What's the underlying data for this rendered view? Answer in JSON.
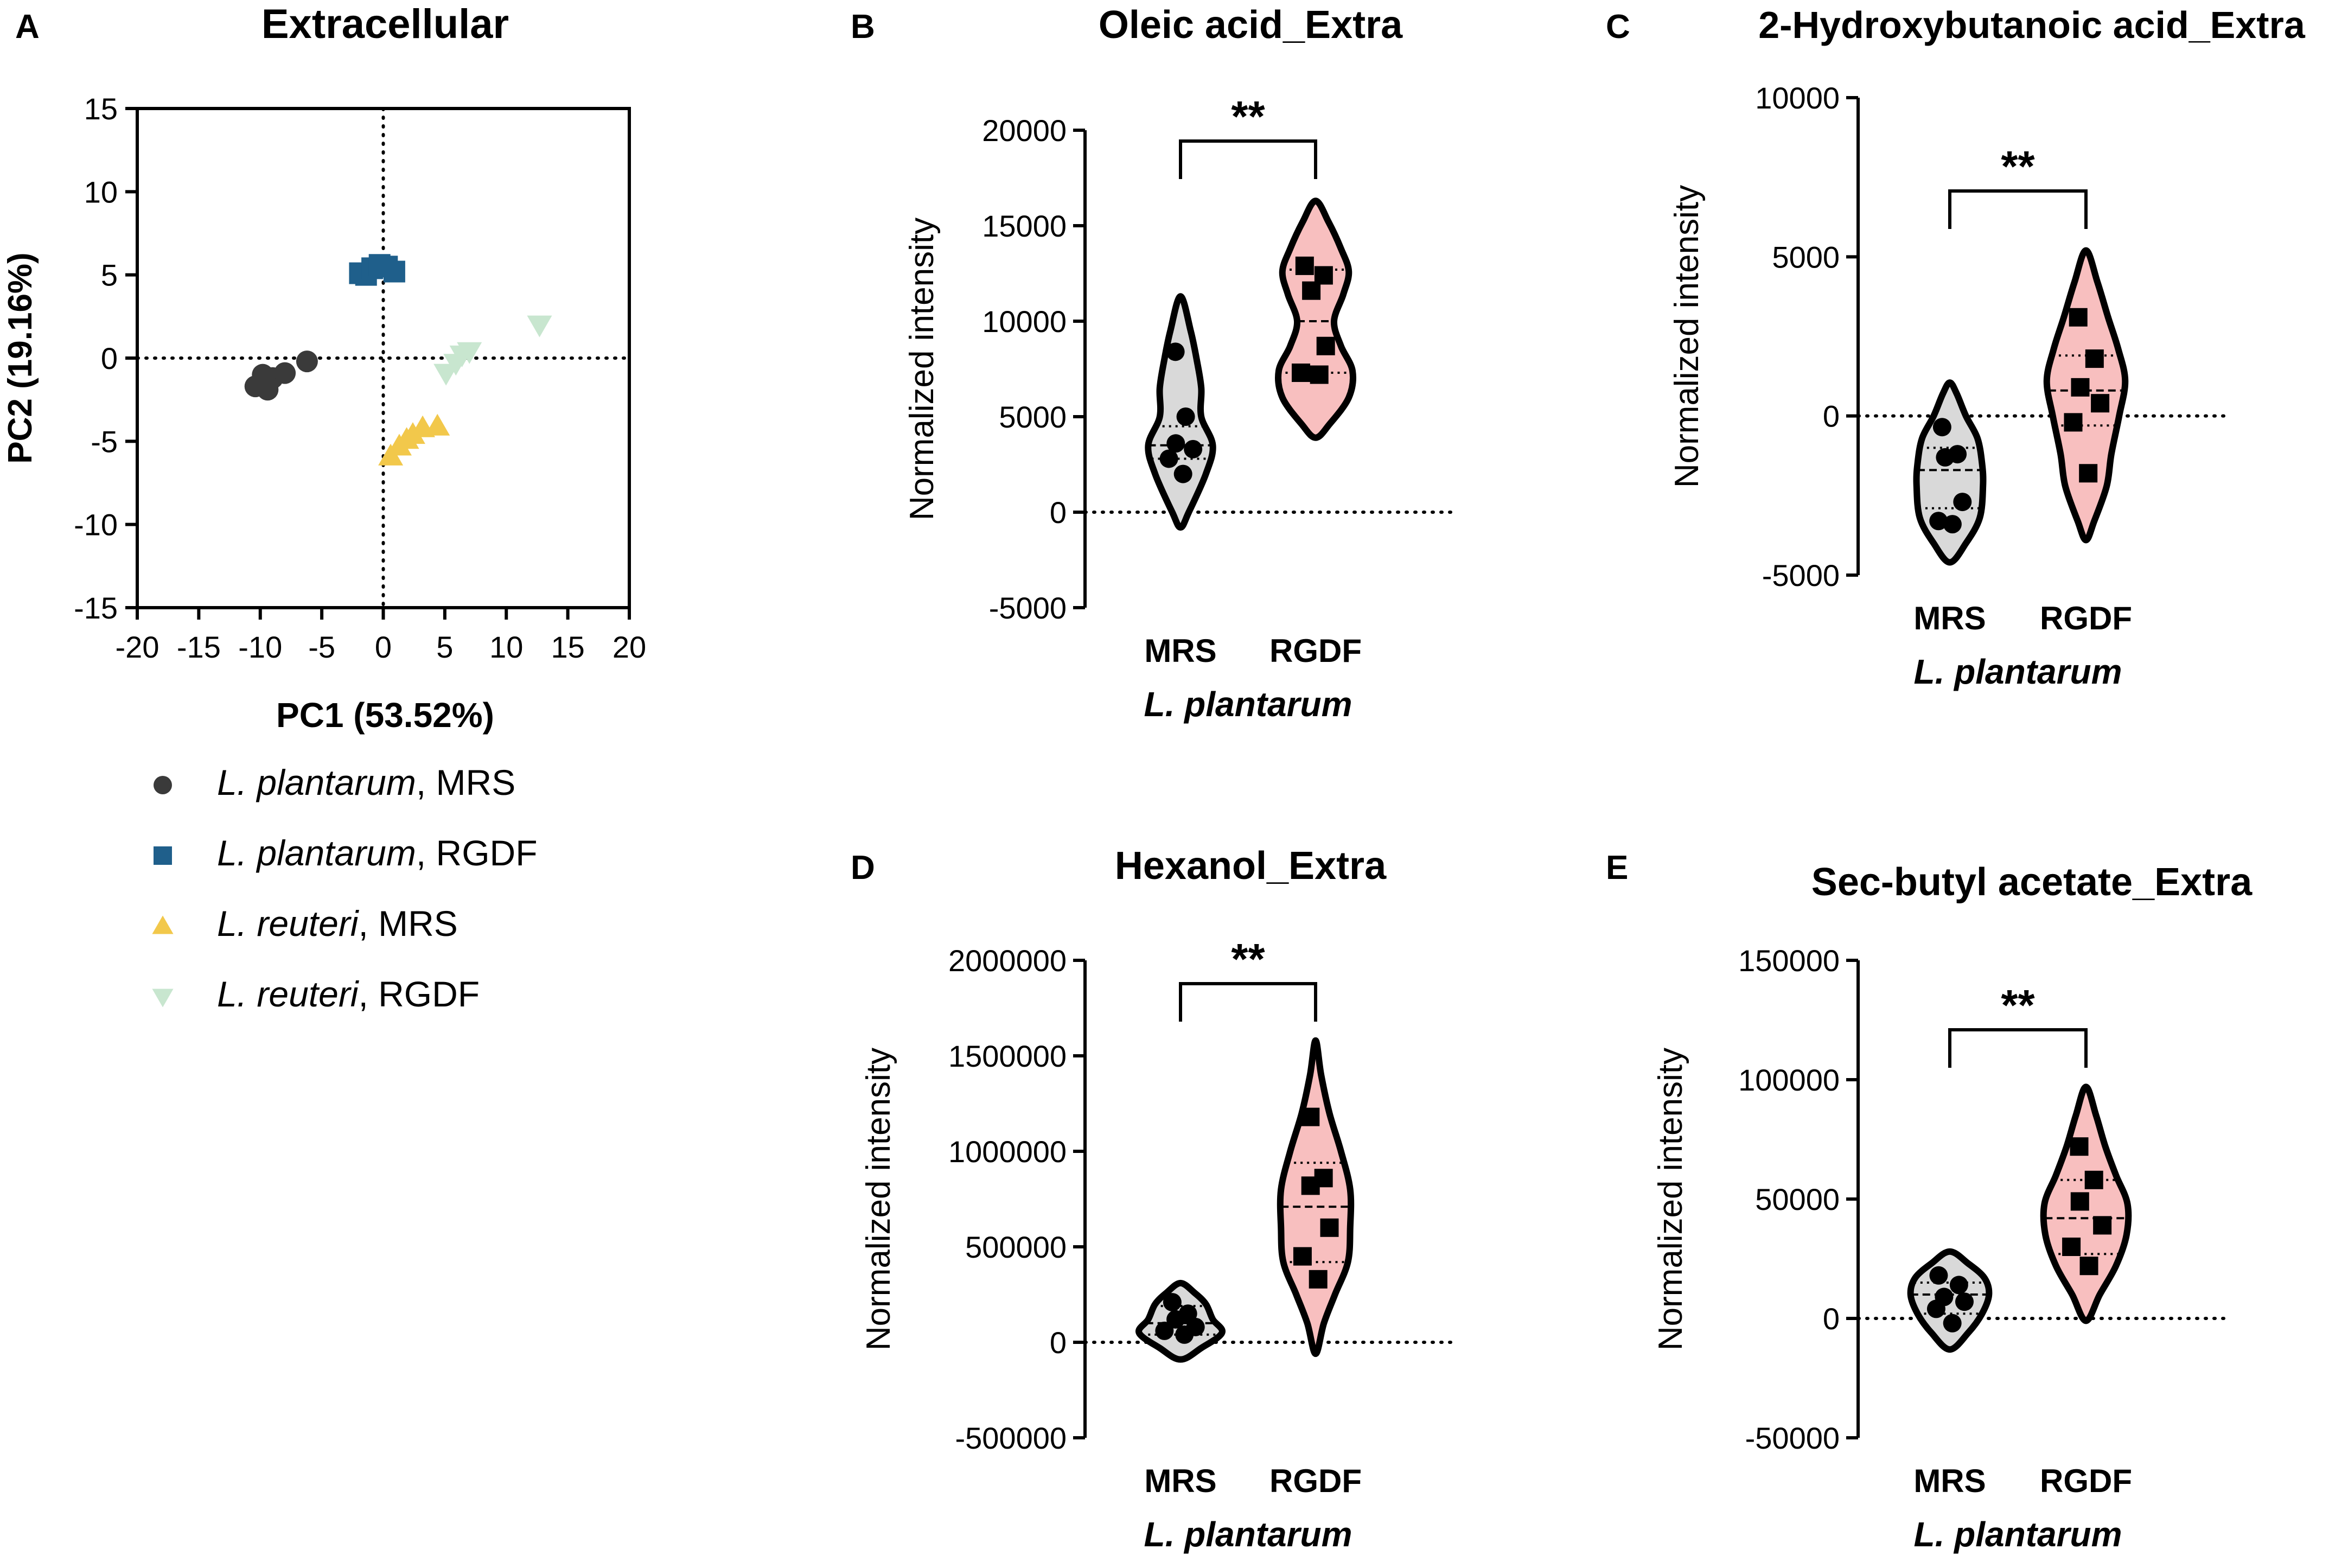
{
  "chart_data": [
    {
      "panel": "A",
      "type": "scatter",
      "title": "Extracellular",
      "xlabel": "PC1 (53.52%)",
      "ylabel": "PC2 (19.16%)",
      "xlim": [
        -20,
        20
      ],
      "ylim": [
        -15,
        15
      ],
      "xticks": [
        -20,
        -15,
        -10,
        -5,
        0,
        5,
        10,
        15,
        20
      ],
      "yticks": [
        15,
        10,
        5,
        0,
        -5,
        -10,
        -15
      ],
      "xtick_labels": [
        "-20",
        "-15",
        "-10",
        "-5",
        "0",
        "5",
        "10",
        "15",
        "20"
      ],
      "ytick_labels": [
        "15",
        "10",
        "5",
        "0",
        "-5",
        "-10",
        "-15"
      ],
      "series": [
        {
          "name_italic": "L. plantarum",
          "name_rest": ", MRS",
          "marker": "circle",
          "color": "#3a3a3a",
          "points": [
            [
              -10.4,
              -1.7
            ],
            [
              -9.8,
              -1.0
            ],
            [
              -9.4,
              -1.9
            ],
            [
              -9.0,
              -1.2
            ],
            [
              -8.0,
              -0.9
            ],
            [
              -6.2,
              -0.2
            ]
          ]
        },
        {
          "name_italic": "L. plantarum",
          "name_rest": ", RGDF",
          "marker": "square",
          "color": "#1f5f8b",
          "points": [
            [
              -1.9,
              5.1
            ],
            [
              -1.4,
              5.0
            ],
            [
              -0.9,
              5.4
            ],
            [
              -0.3,
              5.6
            ],
            [
              0.3,
              5.5
            ],
            [
              0.9,
              5.2
            ]
          ]
        },
        {
          "name_italic": "L. reuteri",
          "name_rest": ", MRS",
          "marker": "triangle-up",
          "color": "#f2c84b",
          "points": [
            [
              0.6,
              -5.9
            ],
            [
              1.3,
              -5.3
            ],
            [
              1.9,
              -4.9
            ],
            [
              2.4,
              -4.6
            ],
            [
              3.2,
              -4.2
            ],
            [
              4.4,
              -4.1
            ]
          ]
        },
        {
          "name_italic": "L. reuteri",
          "name_rest": ", RGDF",
          "marker": "triangle-down",
          "color": "#c8e6cf",
          "points": [
            [
              5.1,
              -0.9
            ],
            [
              5.9,
              -0.3
            ],
            [
              6.4,
              0.2
            ],
            [
              7.0,
              0.4
            ],
            [
              12.7,
              2.0
            ]
          ]
        }
      ]
    },
    {
      "panel": "B",
      "type": "violin",
      "title": "Oleic acid_Extra",
      "ylabel": "Normalized intensity",
      "xlabel": "L. plantarum",
      "categories": [
        "MRS",
        "RGDF"
      ],
      "ylim": [
        -5000,
        20000
      ],
      "yticks": [
        20000,
        15000,
        10000,
        5000,
        0,
        -5000
      ],
      "ytick_labels": [
        "20000",
        "15000",
        "10000",
        "5000",
        "0",
        "-5000"
      ],
      "significance": "**",
      "groups": [
        {
          "name": "MRS",
          "fill": "#d9d9d9",
          "marker": "circle",
          "points": [
            8400,
            5000,
            3600,
            3300,
            2800,
            2000
          ],
          "quartiles": [
            2800,
            3500,
            4500
          ],
          "width_profile": [
            [
              -800,
              0
            ],
            [
              0,
              0.18
            ],
            [
              2000,
              0.55
            ],
            [
              3500,
              0.7
            ],
            [
              5000,
              0.45
            ],
            [
              6500,
              0.45
            ],
            [
              8000,
              0.35
            ],
            [
              9500,
              0.22
            ],
            [
              11300,
              0
            ]
          ]
        },
        {
          "name": "RGDF",
          "fill": "#f8bfbf",
          "marker": "square",
          "points": [
            12900,
            12400,
            11600,
            8700,
            7300,
            7200
          ],
          "quartiles": [
            7300,
            10000,
            12700
          ],
          "width_profile": [
            [
              3900,
              0
            ],
            [
              4600,
              0.3
            ],
            [
              6000,
              0.72
            ],
            [
              7400,
              0.8
            ],
            [
              8700,
              0.55
            ],
            [
              10000,
              0.4
            ],
            [
              11400,
              0.6
            ],
            [
              12600,
              0.72
            ],
            [
              13800,
              0.55
            ],
            [
              15200,
              0.28
            ],
            [
              16300,
              0
            ]
          ]
        }
      ]
    },
    {
      "panel": "C",
      "type": "violin",
      "title": "2-Hydroxybutanoic acid_Extra",
      "ylabel": "Normalized intensity",
      "xlabel": "L. plantarum",
      "categories": [
        "MRS",
        "RGDF"
      ],
      "ylim": [
        -5000,
        10000
      ],
      "yticks": [
        10000,
        5000,
        0,
        -5000
      ],
      "ytick_labels": [
        "10000",
        "5000",
        "0",
        "-5000"
      ],
      "significance": "**",
      "groups": [
        {
          "name": "MRS",
          "fill": "#d9d9d9",
          "marker": "circle",
          "points": [
            -350,
            -1200,
            -1300,
            -2700,
            -3300,
            -3400
          ],
          "quartiles": [
            -2900,
            -1700,
            -1000
          ],
          "width_profile": [
            [
              -4600,
              0
            ],
            [
              -4000,
              0.35
            ],
            [
              -3200,
              0.65
            ],
            [
              -2200,
              0.72
            ],
            [
              -1500,
              0.7
            ],
            [
              -700,
              0.6
            ],
            [
              0,
              0.35
            ],
            [
              700,
              0.15
            ],
            [
              1050,
              0
            ]
          ]
        },
        {
          "name": "RGDF",
          "fill": "#f8bfbf",
          "marker": "square",
          "points": [
            3100,
            1800,
            900,
            400,
            -200,
            -1800
          ],
          "quartiles": [
            -300,
            800,
            1900
          ],
          "width_profile": [
            [
              -3900,
              0
            ],
            [
              -3300,
              0.18
            ],
            [
              -2200,
              0.45
            ],
            [
              -1200,
              0.55
            ],
            [
              0,
              0.72
            ],
            [
              1100,
              0.85
            ],
            [
              2100,
              0.7
            ],
            [
              3100,
              0.48
            ],
            [
              4200,
              0.25
            ],
            [
              5200,
              0
            ]
          ]
        }
      ]
    },
    {
      "panel": "D",
      "type": "violin",
      "title": "Hexanol_Extra",
      "ylabel": "Normalized intensity",
      "xlabel": "L. plantarum",
      "categories": [
        "MRS",
        "RGDF"
      ],
      "ylim": [
        -500000,
        2000000
      ],
      "yticks": [
        2000000,
        1500000,
        1000000,
        500000,
        0,
        -500000
      ],
      "ytick_labels": [
        "2000000",
        "1500000",
        "1000000",
        "500000",
        "0",
        "-500000"
      ],
      "significance": "**",
      "groups": [
        {
          "name": "MRS",
          "fill": "#d9d9d9",
          "marker": "circle",
          "points": [
            210000,
            150000,
            120000,
            80000,
            60000,
            40000
          ],
          "quartiles": [
            40000,
            100000,
            190000
          ],
          "width_profile": [
            [
              -90000,
              0
            ],
            [
              -30000,
              0.45
            ],
            [
              50000,
              0.9
            ],
            [
              120000,
              0.7
            ],
            [
              200000,
              0.55
            ],
            [
              260000,
              0.3
            ],
            [
              310000,
              0
            ]
          ]
        },
        {
          "name": "RGDF",
          "fill": "#f8bfbf",
          "marker": "square",
          "points": [
            1180000,
            860000,
            820000,
            600000,
            450000,
            330000
          ],
          "quartiles": [
            420000,
            710000,
            940000
          ],
          "width_profile": [
            [
              -60000,
              0
            ],
            [
              100000,
              0.18
            ],
            [
              250000,
              0.42
            ],
            [
              420000,
              0.7
            ],
            [
              600000,
              0.75
            ],
            [
              800000,
              0.75
            ],
            [
              1000000,
              0.55
            ],
            [
              1200000,
              0.3
            ],
            [
              1400000,
              0.12
            ],
            [
              1580000,
              0
            ]
          ]
        }
      ]
    },
    {
      "panel": "E",
      "type": "violin",
      "title": "Sec-butyl acetate_Extra",
      "ylabel": "Normalized intensity",
      "xlabel": "L. plantarum",
      "categories": [
        "MRS",
        "RGDF"
      ],
      "ylim": [
        -50000,
        150000
      ],
      "yticks": [
        150000,
        100000,
        50000,
        0,
        -50000
      ],
      "ytick_labels": [
        "150000",
        "100000",
        "50000",
        "0",
        "-50000"
      ],
      "significance": "**",
      "groups": [
        {
          "name": "MRS",
          "fill": "#d9d9d9",
          "marker": "circle",
          "points": [
            18000,
            14000,
            9000,
            7000,
            4000,
            -2000
          ],
          "quartiles": [
            2000,
            10000,
            15000
          ],
          "width_profile": [
            [
              -13000,
              0
            ],
            [
              -6000,
              0.4
            ],
            [
              2000,
              0.7
            ],
            [
              10000,
              0.85
            ],
            [
              17000,
              0.75
            ],
            [
              23000,
              0.4
            ],
            [
              28000,
              0
            ]
          ]
        },
        {
          "name": "RGDF",
          "fill": "#f8bfbf",
          "marker": "square",
          "points": [
            72000,
            58000,
            49000,
            39000,
            30000,
            22000
          ],
          "quartiles": [
            27000,
            42000,
            58000
          ],
          "width_profile": [
            [
              -1000,
              0
            ],
            [
              10000,
              0.3
            ],
            [
              22000,
              0.65
            ],
            [
              35000,
              0.88
            ],
            [
              48000,
              0.9
            ],
            [
              60000,
              0.65
            ],
            [
              72000,
              0.42
            ],
            [
              85000,
              0.22
            ],
            [
              97000,
              0
            ]
          ]
        }
      ]
    }
  ],
  "panel_letters": {
    "a": "A",
    "b": "B",
    "c": "C",
    "d": "D",
    "e": "E"
  },
  "colors": {
    "axis": "#000000",
    "mrs_fill": "#d9d9d9",
    "rgdf_fill": "#f8bfbf"
  }
}
